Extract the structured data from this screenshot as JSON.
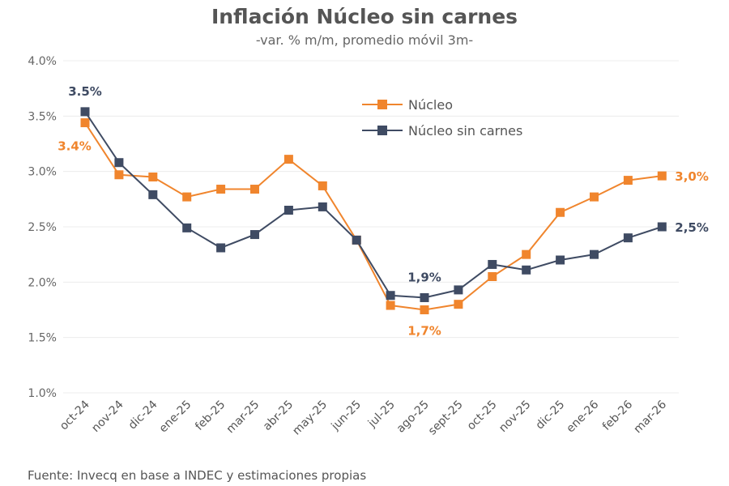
{
  "chart_data": {
    "type": "line",
    "title": "Inflación Núcleo sin carnes",
    "subtitle": "-var. % m/m, promedio móvil 3m-",
    "source": "Fuente: Invecq en base a INDEC y estimaciones propias",
    "categories": [
      "oct-24",
      "nov-24",
      "dic-24",
      "ene-25",
      "feb-25",
      "mar-25",
      "abr-25",
      "may-25",
      "jun-25",
      "jul-25",
      "ago-25",
      "sept-25",
      "oct-25",
      "nov-25",
      "dic-25",
      "ene-26",
      "feb-26",
      "mar-26"
    ],
    "ylim": [
      1.0,
      4.0
    ],
    "yticks": [
      1.0,
      1.5,
      2.0,
      2.5,
      3.0,
      3.5,
      4.0
    ],
    "ytick_labels": [
      "1.0%",
      "1.5%",
      "2.0%",
      "2.5%",
      "3.0%",
      "3.5%",
      "4.0%"
    ],
    "grid": true,
    "legend_position": "top-center",
    "series": [
      {
        "name": "Núcleo",
        "color": "#f0852d",
        "values": [
          3.44,
          2.97,
          2.95,
          2.77,
          2.84,
          2.84,
          3.11,
          2.87,
          2.38,
          1.79,
          1.75,
          1.8,
          2.05,
          2.25,
          2.63,
          2.77,
          2.92,
          2.96
        ]
      },
      {
        "name": "Núcleo sin carnes",
        "color": "#3f4b63",
        "values": [
          3.54,
          3.08,
          2.79,
          2.49,
          2.31,
          2.43,
          2.65,
          2.68,
          2.38,
          1.88,
          1.86,
          1.93,
          2.16,
          2.11,
          2.2,
          2.25,
          2.4,
          2.5
        ]
      }
    ],
    "annotations": [
      {
        "text": "3.5%",
        "series": 1,
        "index": 0,
        "pos": "above"
      },
      {
        "text": "3.4%",
        "series": 0,
        "index": 0,
        "pos": "left"
      },
      {
        "text": "1,9%",
        "series": 1,
        "index": 10,
        "pos": "above"
      },
      {
        "text": "1,7%",
        "series": 0,
        "index": 10,
        "pos": "below"
      },
      {
        "text": "3,0%",
        "series": 0,
        "index": 17,
        "pos": "right"
      },
      {
        "text": "2,5%",
        "series": 1,
        "index": 17,
        "pos": "right"
      }
    ]
  }
}
